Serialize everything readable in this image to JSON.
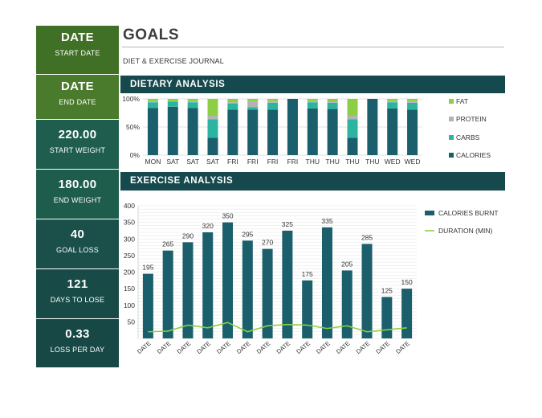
{
  "sidebar": [
    {
      "value": "DATE",
      "label": "START DATE",
      "color": "#3f7025"
    },
    {
      "value": "DATE",
      "label": "END DATE",
      "color": "#4a7a2c"
    },
    {
      "value": "220.00",
      "label": "START WEIGHT",
      "color": "#1f5e4e"
    },
    {
      "value": "180.00",
      "label": "END WEIGHT",
      "color": "#1e5c4c"
    },
    {
      "value": "40",
      "label": "GOAL LOSS",
      "color": "#1a4f4a"
    },
    {
      "value": "121",
      "label": "DAYS TO LOSE",
      "color": "#184b47"
    },
    {
      "value": "0.33",
      "label": "LOSS PER DAY",
      "color": "#174845"
    }
  ],
  "header": {
    "title": "GOALS",
    "subtitle": "DIET & EXERCISE JOURNAL"
  },
  "sections": {
    "dietary": "DIETARY ANALYSIS",
    "exercise": "EXERCISE ANALYSIS"
  },
  "chart_data": [
    {
      "type": "bar",
      "stacked": "percent",
      "categories": [
        "MON",
        "SAT",
        "SAT",
        "SAT",
        "FRI",
        "FRI",
        "FRI",
        "FRI",
        "THU",
        "THU",
        "THU",
        "THU",
        "WED",
        "WED"
      ],
      "series": [
        {
          "name": "CALORIES",
          "color": "#1a5f6b",
          "values": [
            84,
            86,
            84,
            31,
            81,
            81,
            81,
            100,
            83,
            82,
            31,
            100,
            83,
            81
          ]
        },
        {
          "name": "CARBS",
          "color": "#2bb5a0",
          "values": [
            10,
            9,
            10,
            33,
            11,
            4,
            12,
            0,
            11,
            11,
            33,
            0,
            11,
            12
          ]
        },
        {
          "name": "PROTEIN",
          "color": "#b3b3b3",
          "values": [
            2,
            1,
            2,
            6,
            2,
            11,
            3,
            0,
            2,
            2,
            6,
            0,
            2,
            3
          ]
        },
        {
          "name": "FAT",
          "color": "#8ccf45",
          "values": [
            4,
            4,
            4,
            30,
            6,
            4,
            4,
            0,
            4,
            5,
            30,
            0,
            4,
            4
          ]
        }
      ],
      "yticks": [
        "100%",
        "50%",
        "0%"
      ],
      "ylim": [
        0,
        100
      ],
      "legend": "right"
    },
    {
      "type": "bar",
      "categories": [
        "DATE",
        "DATE",
        "DATE",
        "DATE",
        "DATE",
        "DATE",
        "DATE",
        "DATE",
        "DATE",
        "DATE",
        "DATE",
        "DATE",
        "DATE",
        "DATE"
      ],
      "series": [
        {
          "name": "CALORIES BURNT",
          "type": "bar",
          "color": "#1a5f6b",
          "values": [
            195,
            265,
            290,
            320,
            350,
            295,
            270,
            325,
            175,
            335,
            205,
            285,
            125,
            150
          ]
        },
        {
          "name": "DURATION (MIN)",
          "type": "line",
          "color": "#8ccf45",
          "values": [
            20,
            22,
            40,
            32,
            48,
            20,
            38,
            42,
            40,
            30,
            38,
            20,
            26,
            32
          ]
        }
      ],
      "yticks": [
        "400",
        "350",
        "300",
        "250",
        "200",
        "150",
        "100",
        "50"
      ],
      "ylim": [
        0,
        400
      ],
      "grid": true,
      "legend": "right"
    }
  ]
}
